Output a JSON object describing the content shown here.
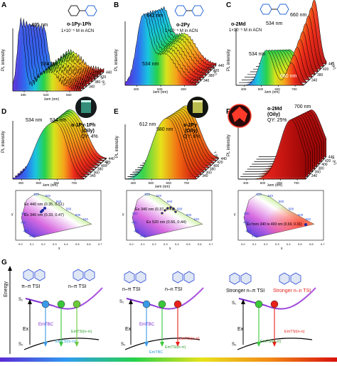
{
  "panels": {
    "A": {
      "letter": "A",
      "compound": "o-1Py-1Ph",
      "conc": "1×10⁻⁵ M in ACN",
      "peak1": "405 nm",
      "peak2": "534 nm",
      "ylabel": "PL intensity",
      "xlabel": "λem (nm)",
      "temp_axis": "T (K)",
      "xticks": [
        "480",
        "520",
        "560"
      ],
      "temps": [
        "340",
        "380",
        "420",
        "440"
      ]
    },
    "B": {
      "letter": "B",
      "compound": "o-2Py",
      "conc": "1×10⁻⁵ M in ACN",
      "peak1": "442 nm",
      "peak2": "534 nm",
      "ylabel": "PL intensity",
      "xlabel": "λem (nm)",
      "temp_axis": "T (K)",
      "xticks": [
        "400",
        "500",
        "600"
      ],
      "temps": [
        "340",
        "380",
        "420",
        "440"
      ]
    },
    "C": {
      "letter": "C",
      "compound": "o-2Md",
      "conc": "1×10⁻⁵ M in ACN",
      "peak1": "660 nm",
      "peak2": "534 nm",
      "peak3": "534 nm",
      "peak4": "660 nm",
      "ylabel": "PL intensity",
      "xlabel": "λem (nm)",
      "temp_axis": "T (K)",
      "xticks": [
        "400",
        "500",
        "600",
        "700"
      ],
      "temps": [
        "340",
        "380",
        "420",
        "440"
      ]
    },
    "D": {
      "letter": "D",
      "compound": "o-1Py-1Ph",
      "state": "(Oily)",
      "qy": "QY: 4%",
      "peak1": "534 nm",
      "peak2": "534 nm",
      "ylabel": "PL intensity",
      "xlabel": "λem (nm)",
      "temp_axis": "T (K)",
      "xticks": [
        "400",
        "500",
        "600",
        "700"
      ],
      "temps": [
        "340",
        "360",
        "380",
        "400",
        "420",
        "440"
      ]
    },
    "E": {
      "letter": "E",
      "compound": "o-2Py",
      "state": "(Oily)",
      "qy": "QY: 6%",
      "peak1": "612 nm",
      "peak2": "580 nm",
      "ylabel": "PL intensity",
      "xlabel": "λem (nm)",
      "temp_axis": "T (K)",
      "xticks": [
        "400",
        "500",
        "600",
        "700"
      ],
      "temps": [
        "340",
        "360",
        "380",
        "400",
        "420",
        "440"
      ]
    },
    "F": {
      "letter": "F",
      "compound": "o-2Md",
      "state": "(Oily)",
      "qy": "QY: 25%",
      "peak1": "700 nm",
      "ylabel": "PL intensity",
      "xlabel": "λem (nm)",
      "temp_axis": "T (K)",
      "xticks": [
        "400",
        "500",
        "600",
        "700"
      ],
      "temps": [
        "340",
        "360",
        "380",
        "400",
        "420",
        "440"
      ]
    }
  },
  "cie": {
    "D": {
      "ann1": "Ex 440 nm (0.35, 0.51)",
      "ann2": "Ex 340 nm (0.33, 0.47)"
    },
    "E": {
      "ann1": "Ex 340 nm (0.37, 0.47)",
      "ann2": "Ex 520 nm (0.56, 0.44)"
    },
    "F": {
      "ann1": "Ex from 340 to 400 nm (0.69, 0.31)"
    },
    "wl_labels": [
      "520",
      "540",
      "560",
      "580",
      "600",
      "620",
      "500",
      "490",
      "480",
      "460"
    ],
    "xticks": [
      "0.0",
      "0.1",
      "0.2",
      "0.3",
      "0.4",
      "0.5",
      "0.6",
      "0.7"
    ],
    "xlabel": "x",
    "ylabel": "y"
  },
  "G": {
    "letter": "G",
    "energy_label": "Energy",
    "s1": "S₁",
    "s0": "S₀",
    "ex": "Ex",
    "left": {
      "tsi1": "π–π TSI",
      "tsi2": "n–π TSI",
      "em1": "EmTBC",
      "em2": "EmTSI(n-π)",
      "em3": "EmTSI(n-π)"
    },
    "mid": {
      "tsi1": "n–π TSI",
      "tsi2": "n–n TSI",
      "em1": "EmTBC",
      "em2": "EmTSI(n-π)",
      "em3": "EmTSI(n-n)",
      "em4": "EmTBC"
    },
    "right": {
      "tsi1": "Stronger n–π TSI",
      "tsi2": "Stronger n–n TSI",
      "em1": "EmTSI(n-π)",
      "em2": "EmTSI(n-n)"
    }
  }
}
